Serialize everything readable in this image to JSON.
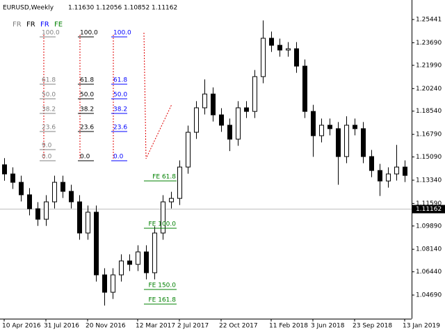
{
  "chart_data": {
    "type": "candlestick",
    "title": "EURUSD,Weekly",
    "ohlc_header": [
      "1.11630",
      "1.12056",
      "1.10852",
      "1.11162"
    ],
    "categories": [
      "10 Apr 2016",
      null,
      null,
      null,
      null,
      "31 Jul 2016",
      null,
      null,
      null,
      null,
      "20 Nov 2016",
      null,
      null,
      null,
      null,
      null,
      "12 Mar 2017",
      null,
      null,
      null,
      null,
      "2 Jul 2017",
      null,
      null,
      null,
      null,
      "22 Oct 2017",
      null,
      null,
      null,
      null,
      null,
      "11 Feb 2018",
      null,
      null,
      null,
      null,
      "3 Jun 2018",
      null,
      null,
      null,
      null,
      "23 Sep 2018",
      null,
      null,
      null,
      null,
      null,
      "13 Jan 2019"
    ],
    "open": [
      1.145,
      1.1381,
      1.1318,
      1.1224,
      1.1119,
      1.104,
      1.1171,
      1.1318,
      1.125,
      1.1171,
      1.0936,
      1.1093,
      1.0621,
      1.049,
      1.0621,
      1.0726,
      1.07,
      1.0794,
      1.0637,
      1.0936,
      1.1171,
      1.1197,
      1.1433,
      1.1695,
      1.1879,
      1.1983,
      1.1826,
      1.1748,
      1.1643,
      1.1879,
      1.1852,
      1.2114,
      1.2403,
      1.235,
      1.2314,
      1.2324,
      1.2193,
      1.1852,
      1.1669,
      1.1748,
      1.1722,
      1.1512,
      1.1748,
      1.1722,
      1.1512,
      1.1407,
      1.1328,
      1.1381,
      1.1433
    ],
    "high": [
      1.15,
      1.1431,
      1.1368,
      1.1274,
      1.1169,
      1.1221,
      1.1368,
      1.1368,
      1.13,
      1.1221,
      1.1143,
      1.1143,
      1.0671,
      1.0671,
      1.0776,
      1.0776,
      1.0844,
      1.0844,
      1.0986,
      1.1221,
      1.1247,
      1.1483,
      1.1745,
      1.1929,
      1.2093,
      1.2033,
      1.1876,
      1.1798,
      1.1929,
      1.1929,
      1.2164,
      1.2537,
      1.2453,
      1.24,
      1.2374,
      1.2374,
      1.2243,
      1.1902,
      1.1798,
      1.1798,
      1.1772,
      1.1815,
      1.1798,
      1.1772,
      1.1562,
      1.1457,
      1.1431,
      1.16,
      1.1483
    ],
    "low": [
      1.133,
      1.1268,
      1.1174,
      1.1069,
      1.099,
      1.099,
      1.1121,
      1.12,
      1.1121,
      1.0886,
      1.0886,
      1.0571,
      1.039,
      1.044,
      1.0571,
      1.065,
      1.065,
      1.0587,
      1.0587,
      1.0886,
      1.1121,
      1.1147,
      1.1383,
      1.1645,
      1.1829,
      1.1776,
      1.1698,
      1.1553,
      1.1593,
      1.1802,
      1.1802,
      1.2064,
      1.23,
      1.2264,
      1.2264,
      1.2143,
      1.1802,
      1.151,
      1.1619,
      1.1672,
      1.13,
      1.1462,
      1.1672,
      1.1462,
      1.1357,
      1.1215,
      1.1278,
      1.1331,
      1.132
    ],
    "close": [
      1.1381,
      1.1318,
      1.1224,
      1.1119,
      1.104,
      1.1171,
      1.1318,
      1.125,
      1.1171,
      1.0936,
      1.1093,
      1.0621,
      1.049,
      1.0621,
      1.0726,
      1.07,
      1.0794,
      1.0637,
      1.0936,
      1.1171,
      1.1197,
      1.1433,
      1.1695,
      1.1879,
      1.1983,
      1.1826,
      1.1748,
      1.1643,
      1.1879,
      1.1852,
      1.2114,
      1.2403,
      1.235,
      1.2314,
      1.2324,
      1.2193,
      1.1852,
      1.1669,
      1.1748,
      1.1722,
      1.1512,
      1.1748,
      1.1722,
      1.1512,
      1.1407,
      1.1328,
      1.1381,
      1.1433,
      1.137
    ],
    "up_color": "#ffffff",
    "down_color": "#000000",
    "ylim": [
      1.0291,
      1.2691
    ],
    "yticks": [
      1.25441,
      {
        "value": 1.2369,
        "label": "1.23690"
      },
      {
        "value": 1.2199,
        "label": "1.21990"
      },
      {
        "value": 1.2024,
        "label": "1.20240"
      },
      {
        "value": 1.1854,
        "label": "1.18540"
      },
      {
        "value": 1.1679,
        "label": "1.16790"
      },
      {
        "value": 1.1509,
        "label": "1.15090"
      },
      {
        "value": 1.1334,
        "label": "1.13340"
      },
      {
        "value": 1.1159,
        "label": "1.11590"
      },
      {
        "value": 1.0989,
        "label": "1.09890"
      },
      {
        "value": 1.0814,
        "label": "1.08140"
      },
      {
        "value": 1.0644,
        "label": "1.06440"
      },
      {
        "value": 1.0469,
        "label": "1.04690"
      }
    ],
    "current_price": 1.11162
  },
  "overlay": {
    "legend": [
      "FR",
      "FR",
      "FR",
      "FE"
    ],
    "fr_gray": [
      "100.0",
      "61.8",
      "50.0",
      "38.2",
      "23.6",
      "9.0",
      "0.0"
    ],
    "fr_black": [
      "100.0",
      "61.8",
      "50.0",
      "38.2",
      "23.6",
      "0.0"
    ],
    "fr_blue": [
      "100.0",
      "61.8",
      "50.0",
      "38.2",
      "23.6",
      "0.0"
    ],
    "fe": [
      "FE 61.8",
      "FE 100.0",
      "FE 150.0",
      "FE 161.8"
    ]
  }
}
